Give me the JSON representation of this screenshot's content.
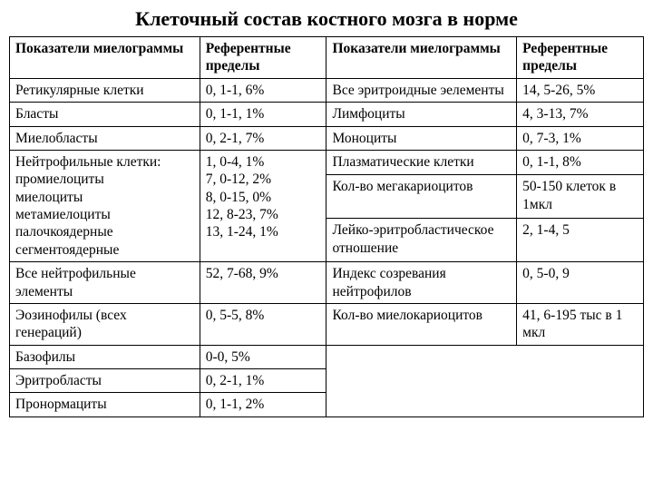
{
  "title": "Клеточный состав костного мозга в норме",
  "headers": {
    "h1": "Показатели миелограммы",
    "h2": "Референтные пределы",
    "h3": "Показатели миелограммы",
    "h4": "Референтные пределы"
  },
  "left": {
    "r1": {
      "name": "Ретикулярные клетки",
      "val": "0, 1-1, 6%"
    },
    "r2": {
      "name": "Бласты",
      "val": "0, 1-1, 1%"
    },
    "r3": {
      "name": "Миелобласты",
      "val": "0, 2-1, 7%"
    },
    "r4": {
      "name": "Нейтрофильные клетки:\nпромиелоциты\nмиелоциты\nметамиелоциты\nпалочкоядерные\nсегментоядерные",
      "val": "1, 0-4, 1%\n7, 0-12, 2%\n8, 0-15, 0%\n12, 8-23, 7%\n13, 1-24, 1%"
    },
    "r5": {
      "name": "Все нейтрофильные элементы",
      "val": "52, 7-68, 9%"
    },
    "r6": {
      "name": "Эозинофилы (всех генераций)",
      "val": "0, 5-5, 8%"
    },
    "r7": {
      "name": "Базофилы",
      "val": "0-0, 5%"
    },
    "r8": {
      "name": "Эритробласты",
      "val": "0, 2-1, 1%"
    },
    "r9": {
      "name": "Пронормациты",
      "val": "0, 1-1, 2%"
    }
  },
  "right": {
    "r1": {
      "name": "Все эритроидные эелементы",
      "val": "14, 5-26, 5%"
    },
    "r2": {
      "name": "Лимфоциты",
      "val": "4, 3-13, 7%"
    },
    "r3": {
      "name": "Моноциты",
      "val": "0, 7-3, 1%"
    },
    "r4a": {
      "name": "Плазматические клетки",
      "val": "0, 1-1, 8%"
    },
    "r4b": {
      "name": "Кол-во мегакариоцитов",
      "val": "50-150 клеток в 1мкл"
    },
    "r4c": {
      "name": "Лейко-эритробластическое отношение",
      "val": "2, 1-4, 5"
    },
    "r5": {
      "name": "Индекс созревания нейтрофилов",
      "val": "0, 5-0, 9"
    },
    "r6": {
      "name": "Кол-во миелокариоцитов",
      "val": "41, 6-195 тыс в 1 мкл"
    }
  },
  "colors": {
    "background": "#ffffff",
    "text": "#000000",
    "border": "#000000"
  },
  "typography": {
    "title_fontsize": 22,
    "title_weight": "bold",
    "cell_fontsize": 15.5,
    "font_family": "Times New Roman"
  }
}
